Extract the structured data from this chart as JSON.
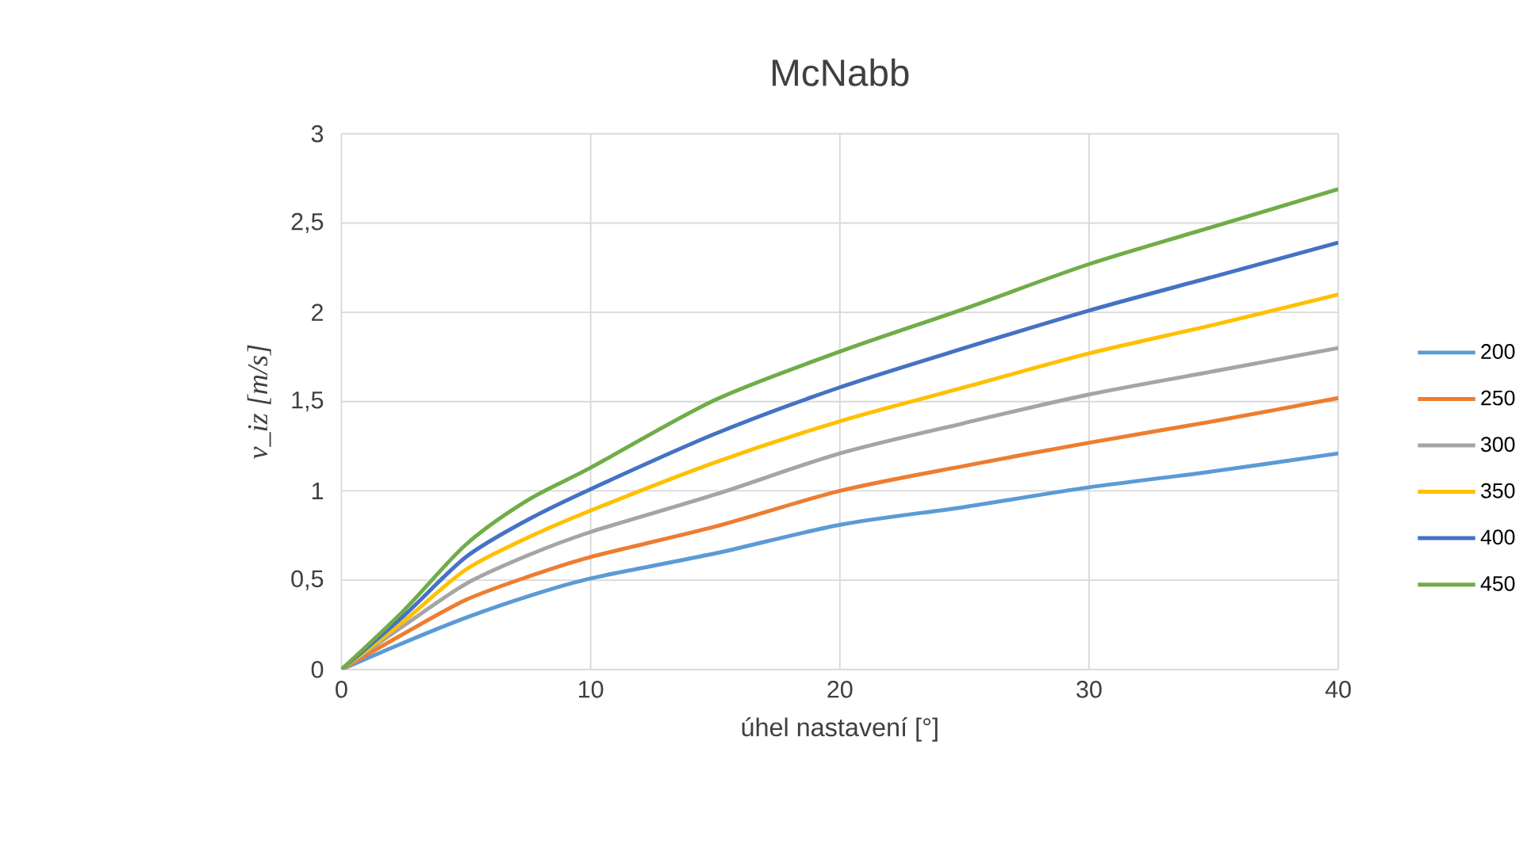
{
  "chart_data": {
    "type": "line",
    "title": "McNabb",
    "xlabel": "úhel nastavení [°]",
    "ylabel": "v_iz  [m/s]",
    "x": [
      0,
      2.5,
      5,
      7.5,
      10,
      15,
      20,
      25,
      30,
      35,
      40
    ],
    "series": [
      {
        "name": "200",
        "color": "#5b9bd5",
        "values": [
          0,
          0.15,
          0.29,
          0.41,
          0.51,
          0.65,
          0.81,
          0.91,
          1.02,
          1.11,
          1.21
        ]
      },
      {
        "name": "250",
        "color": "#ed7d31",
        "values": [
          0,
          0.2,
          0.39,
          0.52,
          0.63,
          0.8,
          1.0,
          1.14,
          1.27,
          1.39,
          1.52
        ]
      },
      {
        "name": "300",
        "color": "#a5a5a5",
        "values": [
          0,
          0.245,
          0.48,
          0.64,
          0.77,
          0.98,
          1.21,
          1.38,
          1.54,
          1.67,
          1.8
        ]
      },
      {
        "name": "350",
        "color": "#ffc000",
        "values": [
          0,
          0.27,
          0.56,
          0.74,
          0.89,
          1.16,
          1.39,
          1.58,
          1.77,
          1.93,
          2.1
        ]
      },
      {
        "name": "400",
        "color": "#4472c4",
        "values": [
          0,
          0.3,
          0.63,
          0.84,
          1.01,
          1.32,
          1.58,
          1.8,
          2.01,
          2.2,
          2.39
        ]
      },
      {
        "name": "450",
        "color": "#70ad47",
        "values": [
          0,
          0.33,
          0.7,
          0.95,
          1.13,
          1.51,
          1.78,
          2.02,
          2.27,
          2.48,
          2.69
        ]
      }
    ],
    "xlim": [
      0,
      40
    ],
    "xticks": [
      0,
      10,
      20,
      30,
      40
    ],
    "ylim": [
      0,
      3
    ],
    "yticks": [
      0,
      {
        "value": 0.5,
        "label": "0,5"
      },
      1,
      {
        "value": 1.5,
        "label": "1,5"
      },
      2,
      {
        "value": 2.5,
        "label": "2,5"
      },
      3
    ],
    "grid": true,
    "legend": "right",
    "marker": "none",
    "line_style": "solid"
  }
}
